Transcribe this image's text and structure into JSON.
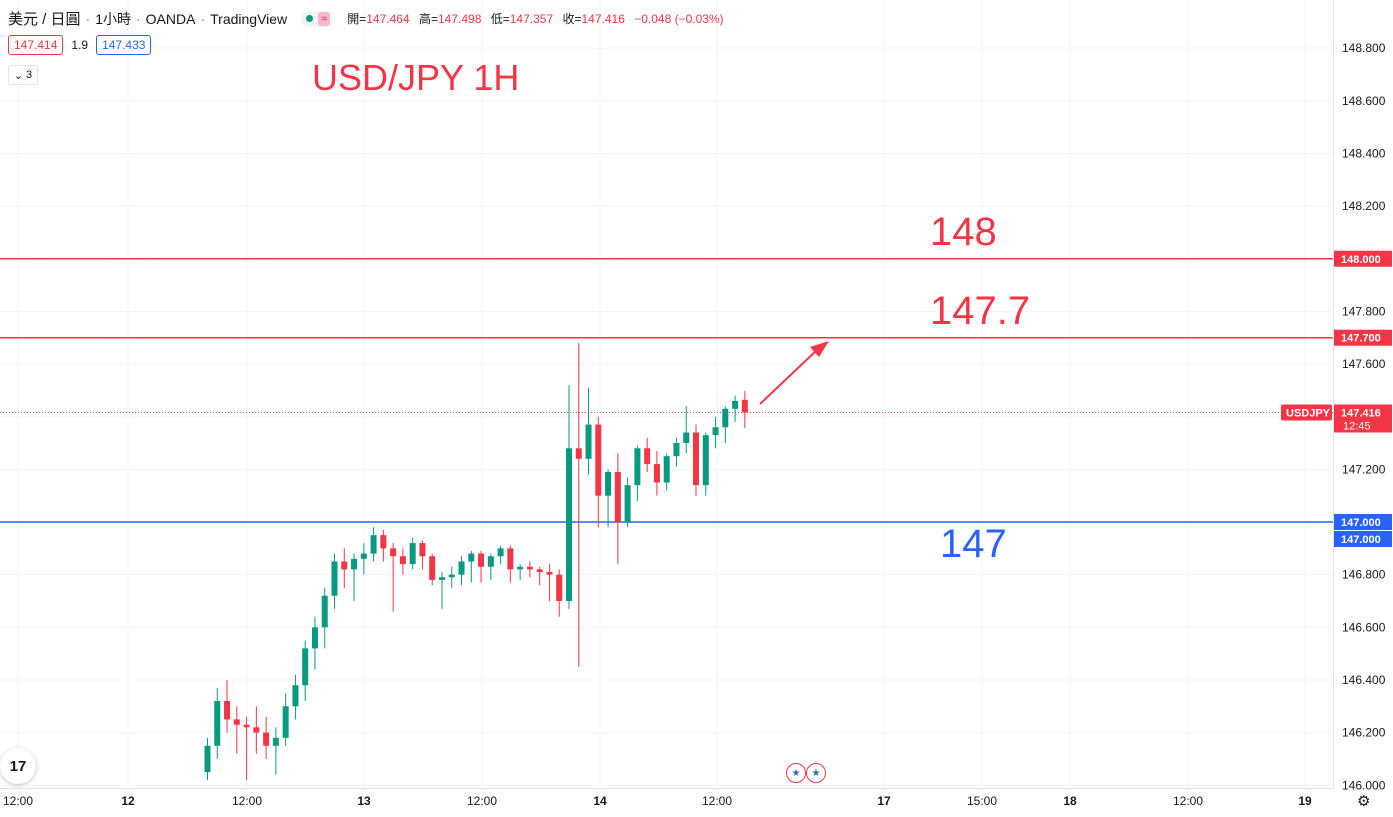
{
  "legend": {
    "symbol": "美元 / 日圓",
    "interval": "1小時",
    "broker": "OANDA",
    "platform": "TradingView",
    "delay_badge": "≈",
    "ohlc": {
      "open_label": "開=",
      "open": "147.464",
      "high_label": "高=",
      "high": "147.498",
      "low_label": "低=",
      "low": "147.357",
      "close_label": "收=",
      "close": "147.416",
      "change": "−0.048 (−0.03%)"
    }
  },
  "trade": {
    "sell": "147.414",
    "spread": "1.9",
    "buy": "147.433"
  },
  "indicators_toggle": {
    "icon": "chevron-down-icon",
    "count": "3"
  },
  "annotations": {
    "title": "USD/JPY 1H",
    "level_148": "148",
    "level_1477": "147.7",
    "level_147": "147"
  },
  "badges": {
    "symbol": "USDJPY",
    "last_price": "147.416",
    "countdown": "12:45",
    "h148": "148.000",
    "h1477": "147.700",
    "h147a": "147.000",
    "h147b": "147.000"
  },
  "logo": "17",
  "colors": {
    "up": "#089981",
    "down": "#f23645",
    "resistance": "#f23645",
    "support": "#2962ff",
    "grid": "#f0f3fa"
  },
  "chart_data": {
    "type": "candlestick",
    "ylim": [
      146.0,
      148.9
    ],
    "y_ticks": [
      "146.000",
      "146.200",
      "146.400",
      "146.600",
      "146.800",
      "147.000",
      "147.200",
      "147.400",
      "147.600",
      "147.800",
      "148.000",
      "148.200",
      "148.400",
      "148.600",
      "148.800"
    ],
    "x_tick_labels": [
      "12:00",
      "12",
      "12:00",
      "13",
      "12:00",
      "14",
      "12:00",
      "17",
      "15:00",
      "18",
      "12:00",
      "19"
    ],
    "horizontal_lines": [
      {
        "price": 148.0,
        "color": "#f23645"
      },
      {
        "price": 147.7,
        "color": "#f23645"
      },
      {
        "price": 147.0,
        "color": "#2962ff"
      }
    ],
    "last_price_line": 147.416,
    "candles": [
      [
        146.05,
        146.18,
        146.02,
        146.15
      ],
      [
        146.15,
        146.37,
        146.1,
        146.32
      ],
      [
        146.32,
        146.4,
        146.2,
        146.25
      ],
      [
        146.25,
        146.3,
        146.12,
        146.23
      ],
      [
        146.23,
        146.26,
        146.02,
        146.22
      ],
      [
        146.22,
        146.3,
        146.12,
        146.2
      ],
      [
        146.2,
        146.26,
        146.1,
        146.15
      ],
      [
        146.15,
        146.22,
        146.04,
        146.18
      ],
      [
        146.18,
        146.35,
        146.15,
        146.3
      ],
      [
        146.3,
        146.42,
        146.25,
        146.38
      ],
      [
        146.38,
        146.55,
        146.32,
        146.52
      ],
      [
        146.52,
        146.64,
        146.44,
        146.6
      ],
      [
        146.6,
        146.75,
        146.52,
        146.72
      ],
      [
        146.72,
        146.88,
        146.67,
        146.85
      ],
      [
        146.85,
        146.9,
        146.75,
        146.82
      ],
      [
        146.82,
        146.88,
        146.7,
        146.86
      ],
      [
        146.86,
        146.92,
        146.8,
        146.88
      ],
      [
        146.88,
        146.98,
        146.85,
        146.95
      ],
      [
        146.95,
        146.97,
        146.85,
        146.9
      ],
      [
        146.9,
        146.92,
        146.66,
        146.87
      ],
      [
        146.87,
        146.9,
        146.8,
        146.84
      ],
      [
        146.84,
        146.94,
        146.82,
        146.92
      ],
      [
        146.92,
        146.93,
        146.82,
        146.87
      ],
      [
        146.87,
        146.88,
        146.76,
        146.78
      ],
      [
        146.78,
        146.81,
        146.67,
        146.79
      ],
      [
        146.79,
        146.83,
        146.75,
        146.8
      ],
      [
        146.8,
        146.87,
        146.76,
        146.85
      ],
      [
        146.85,
        146.89,
        146.77,
        146.88
      ],
      [
        146.88,
        146.89,
        146.77,
        146.83
      ],
      [
        146.83,
        146.88,
        146.78,
        146.87
      ],
      [
        146.87,
        146.91,
        146.84,
        146.9
      ],
      [
        146.9,
        146.91,
        146.77,
        146.82
      ],
      [
        146.82,
        146.84,
        146.78,
        146.83
      ],
      [
        146.83,
        146.85,
        146.79,
        146.82
      ],
      [
        146.82,
        146.83,
        146.76,
        146.81
      ],
      [
        146.81,
        146.84,
        146.7,
        146.8
      ],
      [
        146.8,
        146.82,
        146.64,
        146.7
      ],
      [
        146.7,
        147.52,
        146.67,
        147.28
      ],
      [
        147.28,
        147.68,
        146.45,
        147.24
      ],
      [
        147.24,
        147.51,
        147.18,
        147.37
      ],
      [
        147.37,
        147.4,
        146.98,
        147.1
      ],
      [
        147.1,
        147.2,
        146.98,
        147.19
      ],
      [
        147.19,
        147.26,
        146.84,
        147.0
      ],
      [
        147.0,
        147.17,
        146.98,
        147.14
      ],
      [
        147.14,
        147.29,
        147.08,
        147.28
      ],
      [
        147.28,
        147.32,
        147.19,
        147.22
      ],
      [
        147.22,
        147.27,
        147.1,
        147.15
      ],
      [
        147.15,
        147.26,
        147.12,
        147.25
      ],
      [
        147.25,
        147.32,
        147.21,
        147.3
      ],
      [
        147.3,
        147.44,
        147.26,
        147.34
      ],
      [
        147.34,
        147.37,
        147.1,
        147.14
      ],
      [
        147.14,
        147.34,
        147.1,
        147.33
      ],
      [
        147.33,
        147.4,
        147.28,
        147.36
      ],
      [
        147.36,
        147.44,
        147.3,
        147.43
      ],
      [
        147.43,
        147.48,
        147.38,
        147.46
      ],
      [
        147.464,
        147.498,
        147.357,
        147.416
      ]
    ]
  }
}
